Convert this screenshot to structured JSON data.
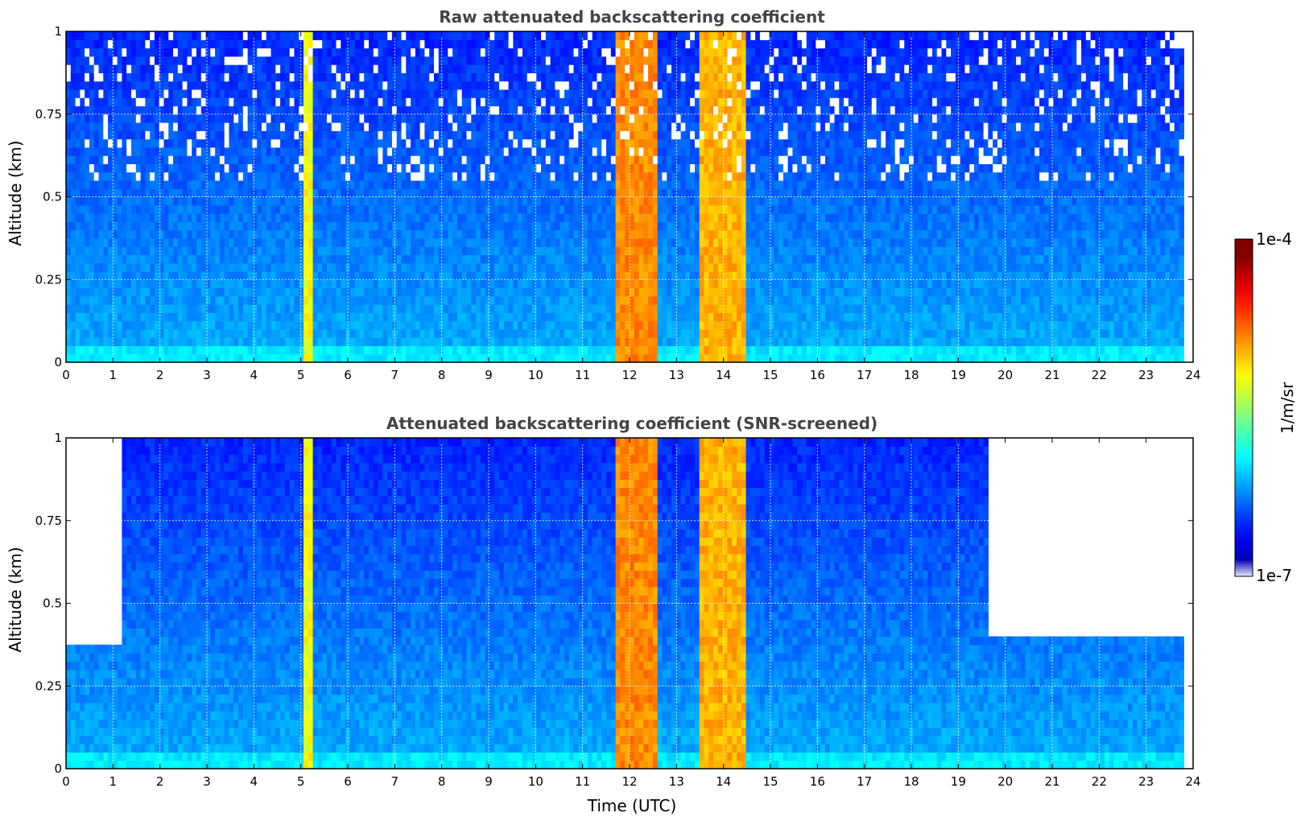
{
  "chart_data": [
    {
      "type": "heatmap",
      "title": "Raw attenuated backscattering coefficient",
      "xlabel": "",
      "ylabel": "Altitude (km)",
      "xlim": [
        0,
        24
      ],
      "ylim": [
        0,
        1
      ],
      "xticks": [
        "0",
        "1",
        "2",
        "3",
        "4",
        "5",
        "6",
        "7",
        "8",
        "9",
        "10",
        "11",
        "12",
        "13",
        "14",
        "15",
        "16",
        "17",
        "18",
        "19",
        "20",
        "21",
        "22",
        "23",
        "24"
      ],
      "yticks": [
        "0",
        "0.25",
        "0.5",
        "0.75",
        "1"
      ],
      "grid": true,
      "data_end_time": 23.8,
      "screened": false,
      "aerosol_bands": [
        {
          "start": 5.05,
          "end": 5.3,
          "level": 0.62
        },
        {
          "start": 11.7,
          "end": 12.55,
          "level": 0.74
        },
        {
          "start": 13.5,
          "end": 14.5,
          "level": 0.7
        }
      ]
    },
    {
      "type": "heatmap",
      "title": "Attenuated backscattering coefficient (SNR-screened)",
      "xlabel": "Time (UTC)",
      "ylabel": "Altitude (km)",
      "xlim": [
        0,
        24
      ],
      "ylim": [
        0,
        1
      ],
      "xticks": [
        "0",
        "1",
        "2",
        "3",
        "4",
        "5",
        "6",
        "7",
        "8",
        "9",
        "10",
        "11",
        "12",
        "13",
        "14",
        "15",
        "16",
        "17",
        "18",
        "19",
        "20",
        "21",
        "22",
        "23",
        "24"
      ],
      "yticks": [
        "0",
        "0.25",
        "0.5",
        "0.75",
        "1"
      ],
      "grid": true,
      "data_end_time": 23.8,
      "screened": true,
      "screened_segments": [
        {
          "start": 0.0,
          "end": 1.2,
          "top_altitude": 0.38
        },
        {
          "start": 19.6,
          "end": 21.1,
          "top_altitude": 0.39
        },
        {
          "start": 21.1,
          "end": 21.5,
          "top_altitude": 0.4
        },
        {
          "start": 21.5,
          "end": 22.3,
          "top_altitude": 0.41
        },
        {
          "start": 22.3,
          "end": 23.0,
          "top_altitude": 0.4
        },
        {
          "start": 23.0,
          "end": 23.8,
          "top_altitude": 0.41
        }
      ],
      "aerosol_bands": [
        {
          "start": 5.05,
          "end": 5.3,
          "level": 0.62
        },
        {
          "start": 11.7,
          "end": 12.55,
          "level": 0.74
        },
        {
          "start": 13.5,
          "end": 14.5,
          "level": 0.7
        }
      ]
    }
  ],
  "colorbar": {
    "label": "1/m/sr",
    "min_label": "1e-7",
    "max_label": "1e-4",
    "scale": "log",
    "colormap": "jet",
    "colors": [
      "#e8e8ff",
      "#0000ff",
      "#00c8ff",
      "#ffff00",
      "#ff0000",
      "#800000"
    ]
  }
}
